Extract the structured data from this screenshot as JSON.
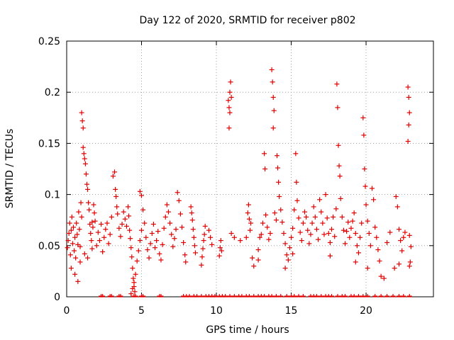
{
  "chart_data": {
    "type": "scatter",
    "title": "Day 122 of 2020, SRMTID for receiver p802",
    "xlabel": "GPS time / hours",
    "ylabel": "SRMTID / TECUs",
    "xlim": [
      0,
      24.5
    ],
    "ylim": [
      0,
      0.25
    ],
    "x_ticks": [
      0,
      5,
      10,
      15,
      20
    ],
    "x_tick_labels": [
      "0",
      "5",
      "10",
      "15",
      "20"
    ],
    "y_ticks": [
      0,
      0.05,
      0.1,
      0.15,
      0.2,
      0.25
    ],
    "y_tick_labels": [
      "0",
      "0.05",
      "0.1",
      "0.15",
      "0.2",
      "0.25"
    ],
    "grid": true,
    "marker": "plus",
    "series": [
      {
        "name": "SRMTID",
        "color": "#e00000",
        "points": [
          [
            0.05,
            0.048
          ],
          [
            0.1,
            0.055
          ],
          [
            0.15,
            0.062
          ],
          [
            0.2,
            0.072
          ],
          [
            0.25,
            0.041
          ],
          [
            0.3,
            0.065
          ],
          [
            0.35,
            0.078
          ],
          [
            0.4,
            0.052
          ],
          [
            0.45,
            0.068
          ],
          [
            0.5,
            0.045
          ],
          [
            0.55,
            0.058
          ],
          [
            0.6,
            0.038
          ],
          [
            0.65,
            0.072
          ],
          [
            0.7,
            0.061
          ],
          [
            0.75,
            0.051
          ],
          [
            0.8,
            0.083
          ],
          [
            0.85,
            0.066
          ],
          [
            0.9,
            0.049
          ],
          [
            0.95,
            0.092
          ],
          [
            1.0,
            0.078
          ],
          [
            1.0,
            0.18
          ],
          [
            1.05,
            0.172
          ],
          [
            1.1,
            0.165
          ],
          [
            1.1,
            0.146
          ],
          [
            1.15,
            0.14
          ],
          [
            1.2,
            0.135
          ],
          [
            1.25,
            0.13
          ],
          [
            1.3,
            0.12
          ],
          [
            1.35,
            0.11
          ],
          [
            1.4,
            0.105
          ],
          [
            1.45,
            0.092
          ],
          [
            1.5,
            0.085
          ],
          [
            1.55,
            0.071
          ],
          [
            1.6,
            0.062
          ],
          [
            1.65,
            0.055
          ],
          [
            1.7,
            0.073
          ],
          [
            1.75,
            0.068
          ],
          [
            1.8,
            0.09
          ],
          [
            1.85,
            0.082
          ],
          [
            1.9,
            0.074
          ],
          [
            0.3,
            0.028
          ],
          [
            0.55,
            0.022
          ],
          [
            0.75,
            0.015
          ],
          [
            0.9,
            0.034
          ],
          [
            1.2,
            0.042
          ],
          [
            1.4,
            0.038
          ],
          [
            1.7,
            0.047
          ],
          [
            2.0,
            0.05
          ],
          [
            2.1,
            0.063
          ],
          [
            2.2,
            0.055
          ],
          [
            2.3,
            0.071
          ],
          [
            2.4,
            0.044
          ],
          [
            2.5,
            0.058
          ],
          [
            2.6,
            0.066
          ],
          [
            2.7,
            0.072
          ],
          [
            2.8,
            0.052
          ],
          [
            2.9,
            0.061
          ],
          [
            3.0,
            0.078
          ],
          [
            3.1,
            0.118
          ],
          [
            3.2,
            0.122
          ],
          [
            3.25,
            0.105
          ],
          [
            3.3,
            0.098
          ],
          [
            3.35,
            0.088
          ],
          [
            3.4,
            0.081
          ],
          [
            3.5,
            0.067
          ],
          [
            3.6,
            0.059
          ],
          [
            3.7,
            0.071
          ],
          [
            3.8,
            0.083
          ],
          [
            3.9,
            0.076
          ],
          [
            4.0,
            0.069
          ],
          [
            4.1,
            0.088
          ],
          [
            4.15,
            0.079
          ],
          [
            4.2,
            0.065
          ],
          [
            4.25,
            0.057
          ],
          [
            4.3,
            0.048
          ],
          [
            4.35,
            0.039
          ],
          [
            4.4,
            0.028
          ],
          [
            4.45,
            0.018
          ],
          [
            4.5,
            0.01
          ],
          [
            4.55,
            0.005
          ],
          [
            4.3,
            0.003
          ],
          [
            4.4,
            0.008
          ],
          [
            4.5,
            0.014
          ],
          [
            4.6,
            0.022
          ],
          [
            4.7,
            0.035
          ],
          [
            4.8,
            0.045
          ],
          [
            4.9,
            0.055
          ],
          [
            5.0,
            0.065
          ],
          [
            4.9,
            0.103
          ],
          [
            5.0,
            0.099
          ],
          [
            5.1,
            0.085
          ],
          [
            5.2,
            0.072
          ],
          [
            5.3,
            0.058
          ],
          [
            5.4,
            0.046
          ],
          [
            5.5,
            0.038
          ],
          [
            5.6,
            0.052
          ],
          [
            5.7,
            0.062
          ],
          [
            5.8,
            0.071
          ],
          [
            5.9,
            0.048
          ],
          [
            6.0,
            0.055
          ],
          [
            6.1,
            0.064
          ],
          [
            6.2,
            0.042
          ],
          [
            6.3,
            0.036
          ],
          [
            6.4,
            0.051
          ],
          [
            6.5,
            0.067
          ],
          [
            6.6,
            0.078
          ],
          [
            6.7,
            0.09
          ],
          [
            6.8,
            0.083
          ],
          [
            6.9,
            0.072
          ],
          [
            7.0,
            0.061
          ],
          [
            7.1,
            0.049
          ],
          [
            7.2,
            0.057
          ],
          [
            7.3,
            0.066
          ],
          [
            7.4,
            0.102
          ],
          [
            7.5,
            0.094
          ],
          [
            7.6,
            0.081
          ],
          [
            7.7,
            0.068
          ],
          [
            7.8,
            0.053
          ],
          [
            7.9,
            0.041
          ],
          [
            7.95,
            0.034
          ],
          [
            8.3,
            0.088
          ],
          [
            8.35,
            0.082
          ],
          [
            8.4,
            0.075
          ],
          [
            8.45,
            0.066
          ],
          [
            8.5,
            0.058
          ],
          [
            8.55,
            0.05
          ],
          [
            8.6,
            0.043
          ],
          [
            9.0,
            0.031
          ],
          [
            9.05,
            0.039
          ],
          [
            9.1,
            0.047
          ],
          [
            9.15,
            0.055
          ],
          [
            9.2,
            0.061
          ],
          [
            9.25,
            0.069
          ],
          [
            9.5,
            0.065
          ],
          [
            9.6,
            0.058
          ],
          [
            9.7,
            0.051
          ],
          [
            10.2,
            0.04
          ],
          [
            10.25,
            0.048
          ],
          [
            10.3,
            0.055
          ],
          [
            10.35,
            0.045
          ],
          [
            10.8,
            0.192
          ],
          [
            10.85,
            0.185
          ],
          [
            10.9,
            0.2
          ],
          [
            10.95,
            0.21
          ],
          [
            11.0,
            0.195
          ],
          [
            10.85,
            0.165
          ],
          [
            10.9,
            0.18
          ],
          [
            11.0,
            0.062
          ],
          [
            11.2,
            0.058
          ],
          [
            11.6,
            0.055
          ],
          [
            12.0,
            0.058
          ],
          [
            12.1,
            0.082
          ],
          [
            12.15,
            0.09
          ],
          [
            12.2,
            0.076
          ],
          [
            12.25,
            0.065
          ],
          [
            12.3,
            0.072
          ],
          [
            12.4,
            0.038
          ],
          [
            12.5,
            0.03
          ],
          [
            12.8,
            0.046
          ],
          [
            12.9,
            0.058
          ],
          [
            13.0,
            0.061
          ],
          [
            13.1,
            0.072
          ],
          [
            13.2,
            0.14
          ],
          [
            13.25,
            0.125
          ],
          [
            13.3,
            0.08
          ],
          [
            13.4,
            0.068
          ],
          [
            13.5,
            0.056
          ],
          [
            13.6,
            0.062
          ],
          [
            13.7,
            0.222
          ],
          [
            13.75,
            0.21
          ],
          [
            13.8,
            0.195
          ],
          [
            13.85,
            0.182
          ],
          [
            13.8,
            0.165
          ],
          [
            13.9,
            0.082
          ],
          [
            14.0,
            0.075
          ],
          [
            14.05,
            0.138
          ],
          [
            14.1,
            0.126
          ],
          [
            14.15,
            0.112
          ],
          [
            14.2,
            0.098
          ],
          [
            14.3,
            0.085
          ],
          [
            14.4,
            0.073
          ],
          [
            14.5,
            0.062
          ],
          [
            14.6,
            0.052
          ],
          [
            14.7,
            0.041
          ],
          [
            14.8,
            0.036
          ],
          [
            14.9,
            0.048
          ],
          [
            15.0,
            0.058
          ],
          [
            15.1,
            0.067
          ],
          [
            15.2,
            0.085
          ],
          [
            15.3,
            0.14
          ],
          [
            15.35,
            0.112
          ],
          [
            15.4,
            0.094
          ],
          [
            15.5,
            0.077
          ],
          [
            15.6,
            0.063
          ],
          [
            15.7,
            0.055
          ],
          [
            15.8,
            0.072
          ],
          [
            15.9,
            0.083
          ],
          [
            16.0,
            0.078
          ],
          [
            16.1,
            0.065
          ],
          [
            16.2,
            0.052
          ],
          [
            16.3,
            0.061
          ],
          [
            16.4,
            0.072
          ],
          [
            16.5,
            0.088
          ],
          [
            16.6,
            0.078
          ],
          [
            16.7,
            0.066
          ],
          [
            16.8,
            0.056
          ],
          [
            16.9,
            0.095
          ],
          [
            17.0,
            0.083
          ],
          [
            17.1,
            0.072
          ],
          [
            17.2,
            0.061
          ],
          [
            17.3,
            0.1
          ],
          [
            17.4,
            0.077
          ],
          [
            17.5,
            0.062
          ],
          [
            17.6,
            0.053
          ],
          [
            17.7,
            0.066
          ],
          [
            17.8,
            0.078
          ],
          [
            17.9,
            0.059
          ],
          [
            18.0,
            0.086
          ],
          [
            18.05,
            0.208
          ],
          [
            18.1,
            0.185
          ],
          [
            18.15,
            0.148
          ],
          [
            18.2,
            0.128
          ],
          [
            18.25,
            0.118
          ],
          [
            18.3,
            0.096
          ],
          [
            18.4,
            0.078
          ],
          [
            18.5,
            0.065
          ],
          [
            18.6,
            0.052
          ],
          [
            18.7,
            0.064
          ],
          [
            18.8,
            0.073
          ],
          [
            18.9,
            0.058
          ],
          [
            19.0,
            0.067
          ],
          [
            19.1,
            0.074
          ],
          [
            19.2,
            0.082
          ],
          [
            19.3,
            0.062
          ],
          [
            19.4,
            0.05
          ],
          [
            19.5,
            0.043
          ],
          [
            19.6,
            0.058
          ],
          [
            19.7,
            0.072
          ],
          [
            19.8,
            0.175
          ],
          [
            19.85,
            0.158
          ],
          [
            19.9,
            0.125
          ],
          [
            19.95,
            0.108
          ],
          [
            20.0,
            0.09
          ],
          [
            20.1,
            0.074
          ],
          [
            20.2,
            0.062
          ],
          [
            20.3,
            0.05
          ],
          [
            20.4,
            0.106
          ],
          [
            20.5,
            0.095
          ],
          [
            20.6,
            0.068
          ],
          [
            20.7,
            0.058
          ],
          [
            20.8,
            0.046
          ],
          [
            20.9,
            0.035
          ],
          [
            21.0,
            0.02
          ],
          [
            21.2,
            0.018
          ],
          [
            21.4,
            0.053
          ],
          [
            21.6,
            0.063
          ],
          [
            22.0,
            0.098
          ],
          [
            22.1,
            0.088
          ],
          [
            22.2,
            0.066
          ],
          [
            22.3,
            0.055
          ],
          [
            22.4,
            0.045
          ],
          [
            22.5,
            0.058
          ],
          [
            22.6,
            0.063
          ],
          [
            22.8,
            0.205
          ],
          [
            22.85,
            0.195
          ],
          [
            22.9,
            0.18
          ],
          [
            22.85,
            0.168
          ],
          [
            22.8,
            0.152
          ],
          [
            22.9,
            0.06
          ],
          [
            23.0,
            0.049
          ],
          [
            22.95,
            0.034
          ],
          [
            22.9,
            0.03
          ],
          [
            21.9,
            0.028
          ],
          [
            22.2,
            0.032
          ],
          [
            20.1,
            0.028
          ],
          [
            19.3,
            0.034
          ],
          [
            17.6,
            0.04
          ],
          [
            15.1,
            0.042
          ],
          [
            14.6,
            0.028
          ],
          [
            12.8,
            0.036
          ]
        ],
        "floor_points_x": [
          2.3,
          2.4,
          2.9,
          3.0,
          3.5,
          3.6,
          4.5,
          4.6,
          5.0,
          5.1,
          6.2,
          6.3,
          7.8,
          8.0,
          8.2,
          8.5,
          8.7,
          9.0,
          9.3,
          9.5,
          9.7,
          9.9,
          10.2,
          10.4,
          10.6,
          10.9,
          11.2,
          11.5,
          11.7,
          12.0,
          12.2,
          12.5,
          12.8,
          13.0,
          13.2,
          13.5,
          13.7,
          14.0,
          14.3,
          14.7,
          15.0,
          15.2,
          15.5,
          15.8,
          16.3,
          16.5,
          16.7,
          17.0,
          17.3,
          17.5,
          17.7,
          18.1,
          18.4,
          18.6,
          19.0,
          19.2,
          19.5,
          19.8,
          20.1,
          20.6,
          21.0,
          21.4,
          21.8,
          22.2,
          22.5,
          22.9
        ]
      }
    ]
  }
}
